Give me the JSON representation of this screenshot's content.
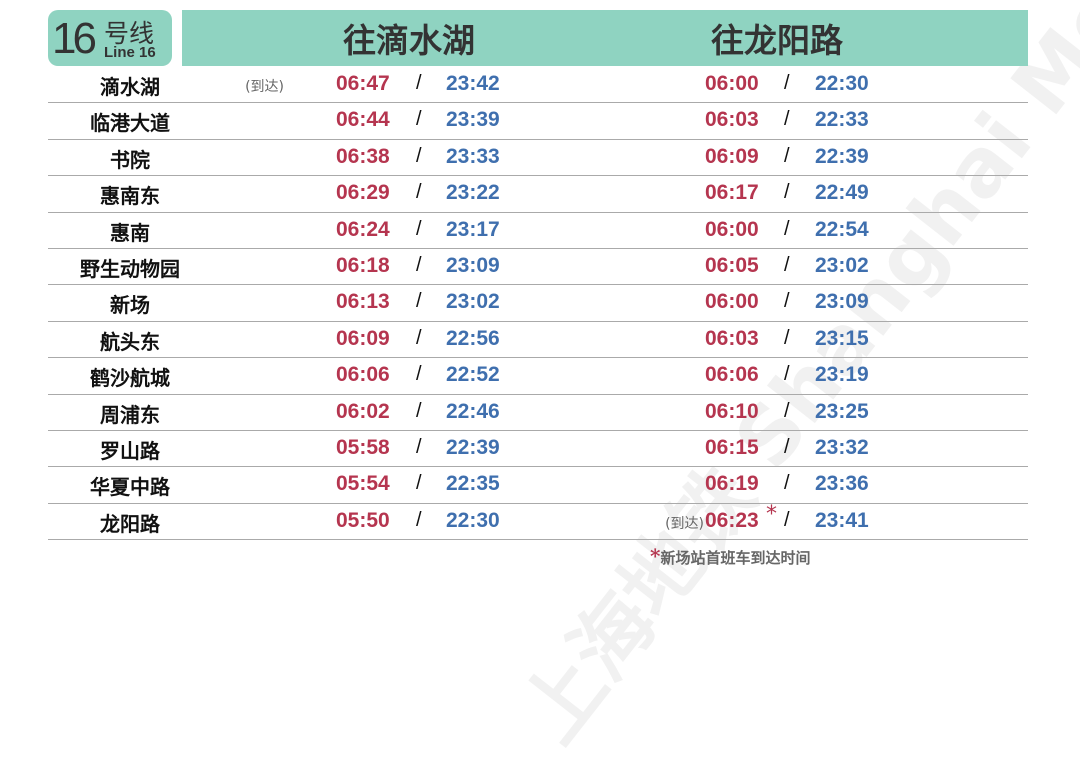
{
  "line": {
    "number": "16",
    "hao": "号线",
    "en": "Line 16"
  },
  "directions": [
    "往滴水湖",
    "往龙阳路"
  ],
  "arrive_label": "(到达)",
  "star": "*",
  "note": "新场站首班车到达时间",
  "watermark": "上海地铁 Shanghai Metro",
  "colors": {
    "header": "#8fd3c1",
    "first": "#b5354f",
    "last": "#3f6fae"
  },
  "rows": [
    {
      "station": "滴水湖",
      "a_first": "06:47",
      "a_last": "23:42",
      "b_first": "06:00",
      "b_last": "22:30",
      "a_arrive": true
    },
    {
      "station": "临港大道",
      "a_first": "06:44",
      "a_last": "23:39",
      "b_first": "06:03",
      "b_last": "22:33"
    },
    {
      "station": "书院",
      "a_first": "06:38",
      "a_last": "23:33",
      "b_first": "06:09",
      "b_last": "22:39"
    },
    {
      "station": "惠南东",
      "a_first": "06:29",
      "a_last": "23:22",
      "b_first": "06:17",
      "b_last": "22:49"
    },
    {
      "station": "惠南",
      "a_first": "06:24",
      "a_last": "23:17",
      "b_first": "06:00",
      "b_last": "22:54"
    },
    {
      "station": "野生动物园",
      "a_first": "06:18",
      "a_last": "23:09",
      "b_first": "06:05",
      "b_last": "23:02"
    },
    {
      "station": "新场",
      "a_first": "06:13",
      "a_last": "23:02",
      "b_first": "06:00",
      "b_last": "23:09"
    },
    {
      "station": "航头东",
      "a_first": "06:09",
      "a_last": "22:56",
      "b_first": "06:03",
      "b_last": "23:15"
    },
    {
      "station": "鹤沙航城",
      "a_first": "06:06",
      "a_last": "22:52",
      "b_first": "06:06",
      "b_last": "23:19"
    },
    {
      "station": "周浦东",
      "a_first": "06:02",
      "a_last": "22:46",
      "b_first": "06:10",
      "b_last": "23:25"
    },
    {
      "station": "罗山路",
      "a_first": "05:58",
      "a_last": "22:39",
      "b_first": "06:15",
      "b_last": "23:32"
    },
    {
      "station": "华夏中路",
      "a_first": "05:54",
      "a_last": "22:35",
      "b_first": "06:19",
      "b_last": "23:36"
    },
    {
      "station": "龙阳路",
      "a_first": "05:50",
      "a_last": "22:30",
      "b_first": "06:23",
      "b_last": "23:41",
      "b_arrive": true,
      "b_star": true
    }
  ]
}
